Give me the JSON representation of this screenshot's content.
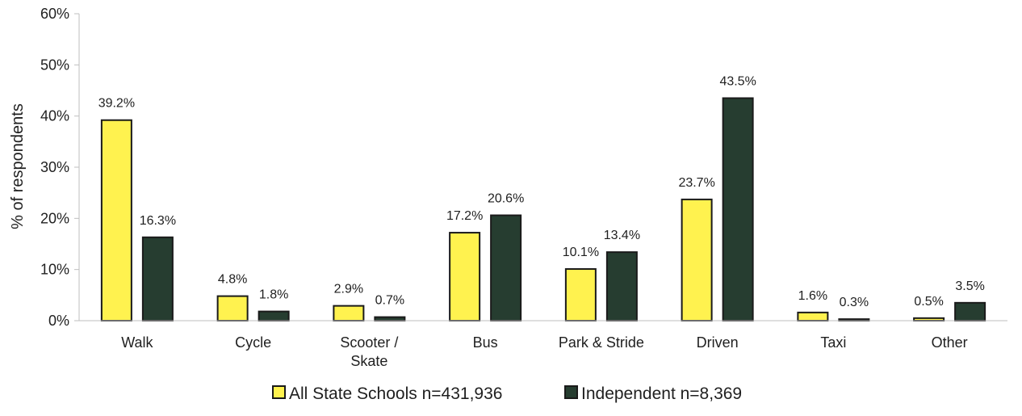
{
  "chart_data": {
    "type": "bar",
    "categories": [
      "Walk",
      "Cycle",
      "Scooter / Skate",
      "Bus",
      "Park & Stride",
      "Driven",
      "Taxi",
      "Other"
    ],
    "category_lines": [
      [
        "Walk"
      ],
      [
        "Cycle"
      ],
      [
        "Scooter /",
        "Skate"
      ],
      [
        "Bus"
      ],
      [
        "Park & Stride"
      ],
      [
        "Driven"
      ],
      [
        "Taxi"
      ],
      [
        "Other"
      ]
    ],
    "series": [
      {
        "name": "All State Schools n=431,936",
        "color": "#fff24f",
        "values": [
          39.2,
          4.8,
          2.9,
          17.2,
          10.1,
          23.7,
          1.6,
          0.5
        ],
        "labels": [
          "39.2%",
          "4.8%",
          "2.9%",
          "17.2%",
          "10.1%",
          "23.7%",
          "1.6%",
          "0.5%"
        ]
      },
      {
        "name": "Independent n=8,369",
        "color": "#263d30",
        "values": [
          16.3,
          1.8,
          0.7,
          20.6,
          13.4,
          43.5,
          0.3,
          3.5
        ],
        "labels": [
          "16.3%",
          "1.8%",
          "0.7%",
          "20.6%",
          "13.4%",
          "43.5%",
          "0.3%",
          "3.5%"
        ]
      }
    ],
    "ylabel": "% of respondents",
    "ylim": [
      0,
      60
    ],
    "yticks": [
      "0%",
      "10%",
      "20%",
      "30%",
      "40%",
      "50%",
      "60%"
    ],
    "grid": false,
    "legend_position": "bottom"
  }
}
